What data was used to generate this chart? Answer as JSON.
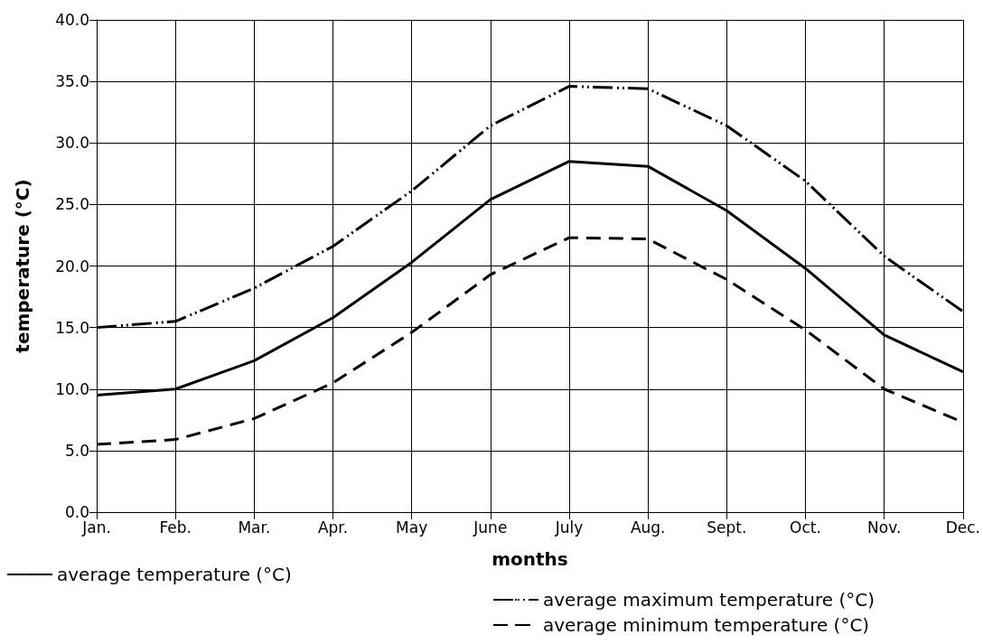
{
  "chart_data": {
    "type": "line",
    "xlabel": "months",
    "ylabel": "temperature (°C)",
    "categories": [
      "Jan.",
      "Feb.",
      "Mar.",
      "Apr.",
      "May",
      "June",
      "July",
      "Aug.",
      "Sept.",
      "Oct.",
      "Nov.",
      "Dec."
    ],
    "series": [
      {
        "name": "average temperature (°C)",
        "color": "#000000",
        "line_style": "solid",
        "values": [
          9.5,
          10.0,
          12.3,
          15.8,
          20.3,
          25.4,
          28.5,
          28.1,
          24.5,
          19.8,
          14.4,
          11.4
        ]
      },
      {
        "name": "average maximum temperature (°C)",
        "color": "#000000",
        "line_style": "dashdot",
        "values": [
          15.0,
          15.5,
          18.2,
          21.6,
          26.1,
          31.4,
          34.6,
          34.4,
          31.4,
          26.9,
          20.8,
          16.3
        ]
      },
      {
        "name": "average minimum temperature (°C)",
        "color": "#000000",
        "line_style": "dashed",
        "values": [
          5.5,
          5.9,
          7.6,
          10.5,
          14.6,
          19.3,
          22.3,
          22.2,
          18.9,
          14.8,
          10.0,
          7.3
        ]
      }
    ],
    "ylim": [
      0,
      40
    ],
    "yticks": [
      {
        "value": 0,
        "label": "0.0"
      },
      {
        "value": 5,
        "label": "5.0"
      },
      {
        "value": 10,
        "label": "10.0"
      },
      {
        "value": 15,
        "label": "15.0"
      },
      {
        "value": 20,
        "label": "20.0"
      },
      {
        "value": 25,
        "label": "25.0"
      },
      {
        "value": 30,
        "label": "30.0"
      },
      {
        "value": 35,
        "label": "35.0"
      },
      {
        "value": 40,
        "label": "40.0"
      }
    ],
    "grid": true,
    "legend": "bottom",
    "marker": "none"
  }
}
